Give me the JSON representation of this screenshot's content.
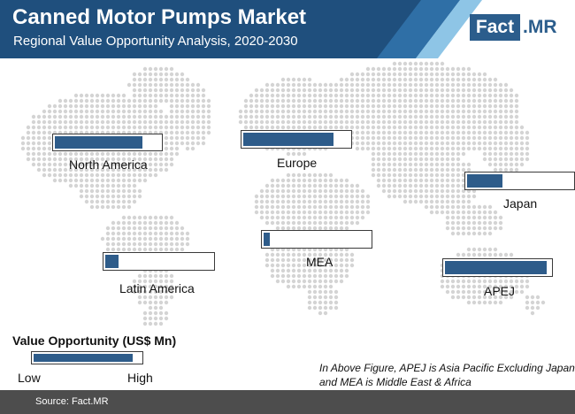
{
  "header": {
    "title": "Canned Motor Pumps Market",
    "subtitle": "Regional Value Opportunity Analysis, 2020-2030",
    "logo_left": "Fact",
    "logo_right": ".MR"
  },
  "chart_data": {
    "type": "bar",
    "title": "Canned Motor Pumps Market",
    "subtitle": "Regional Value Opportunity Analysis, 2020-2030",
    "categories": [
      "North America",
      "Europe",
      "Japan",
      "MEA",
      "Latin America",
      "APEJ"
    ],
    "values": [
      0.83,
      0.85,
      0.34,
      0.06,
      0.12,
      0.97
    ],
    "value_scale": "relative fill (0 = Low, 1 = High)",
    "legend": {
      "title": "Value Opportunity (US$ Mn)",
      "low": "Low",
      "high": "High"
    }
  },
  "note": {
    "line1": "In Above Figure, APEJ is Asia Pacific Excluding Japan",
    "line2": "and MEA is Middle East & Africa"
  },
  "footer": {
    "source": "Source: Fact.MR"
  },
  "colors": {
    "header_dark": "#1f4f7d",
    "header_mid": "#3a7ab5",
    "header_light": "#8ec5e6",
    "bar_fill": "#2e5c8a",
    "map_dot": "#d4d4d4",
    "footer_bg": "#4d4d4d"
  }
}
